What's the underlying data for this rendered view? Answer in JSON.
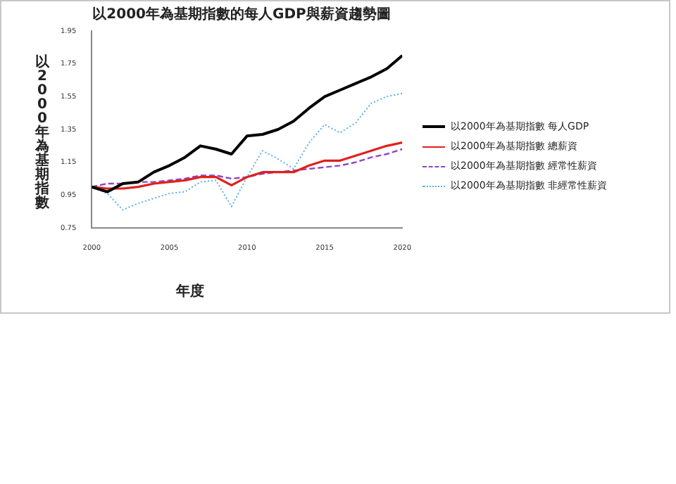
{
  "chart_data": {
    "type": "line",
    "title": "以2000年為基期指數的每人GDP與薪資趨勢圖",
    "xlabel": "年度",
    "ylabel": "以2000年為基期指數",
    "x": [
      2000,
      2001,
      2002,
      2003,
      2004,
      2005,
      2006,
      2007,
      2008,
      2009,
      2010,
      2011,
      2012,
      2013,
      2014,
      2015,
      2016,
      2017,
      2018,
      2019,
      2020
    ],
    "xlim": [
      2000,
      2020
    ],
    "xticks": [
      2000,
      2005,
      2010,
      2015,
      2020
    ],
    "ylim": [
      0.75,
      1.95
    ],
    "yticks": [
      0.75,
      0.95,
      1.15,
      1.35,
      1.55,
      1.75,
      1.95
    ],
    "grid": false,
    "legend": "right",
    "marker": "none",
    "series": [
      {
        "name": "以2000年為基期指數 每人GDP",
        "color": "#000000",
        "line_style": "solid",
        "values": [
          1.0,
          0.97,
          1.02,
          1.03,
          1.09,
          1.13,
          1.18,
          1.25,
          1.23,
          1.2,
          1.31,
          1.32,
          1.35,
          1.4,
          1.48,
          1.55,
          1.59,
          1.63,
          1.67,
          1.72,
          1.8
        ]
      },
      {
        "name": "以2000年為基期指數 總薪資",
        "color": "#e0201b",
        "line_style": "solid",
        "values": [
          1.0,
          0.99,
          0.99,
          1.0,
          1.02,
          1.03,
          1.04,
          1.06,
          1.06,
          1.01,
          1.06,
          1.09,
          1.09,
          1.09,
          1.13,
          1.16,
          1.16,
          1.19,
          1.22,
          1.25,
          1.27
        ]
      },
      {
        "name": "以2000年為基期指數 經常性薪資",
        "color": "#8e44c8",
        "line_style": "dashed",
        "values": [
          1.0,
          1.02,
          1.02,
          1.03,
          1.03,
          1.04,
          1.05,
          1.07,
          1.07,
          1.05,
          1.06,
          1.08,
          1.09,
          1.1,
          1.11,
          1.12,
          1.13,
          1.15,
          1.18,
          1.2,
          1.23
        ]
      },
      {
        "name": "以2000年為基期指數 非經常性薪資",
        "color": "#5aaee8",
        "line_style": "dotted",
        "values": [
          1.0,
          0.96,
          0.86,
          0.9,
          0.93,
          0.96,
          0.97,
          1.03,
          1.04,
          0.88,
          1.06,
          1.22,
          1.17,
          1.11,
          1.27,
          1.38,
          1.33,
          1.39,
          1.51,
          1.55,
          1.57
        ]
      }
    ]
  }
}
